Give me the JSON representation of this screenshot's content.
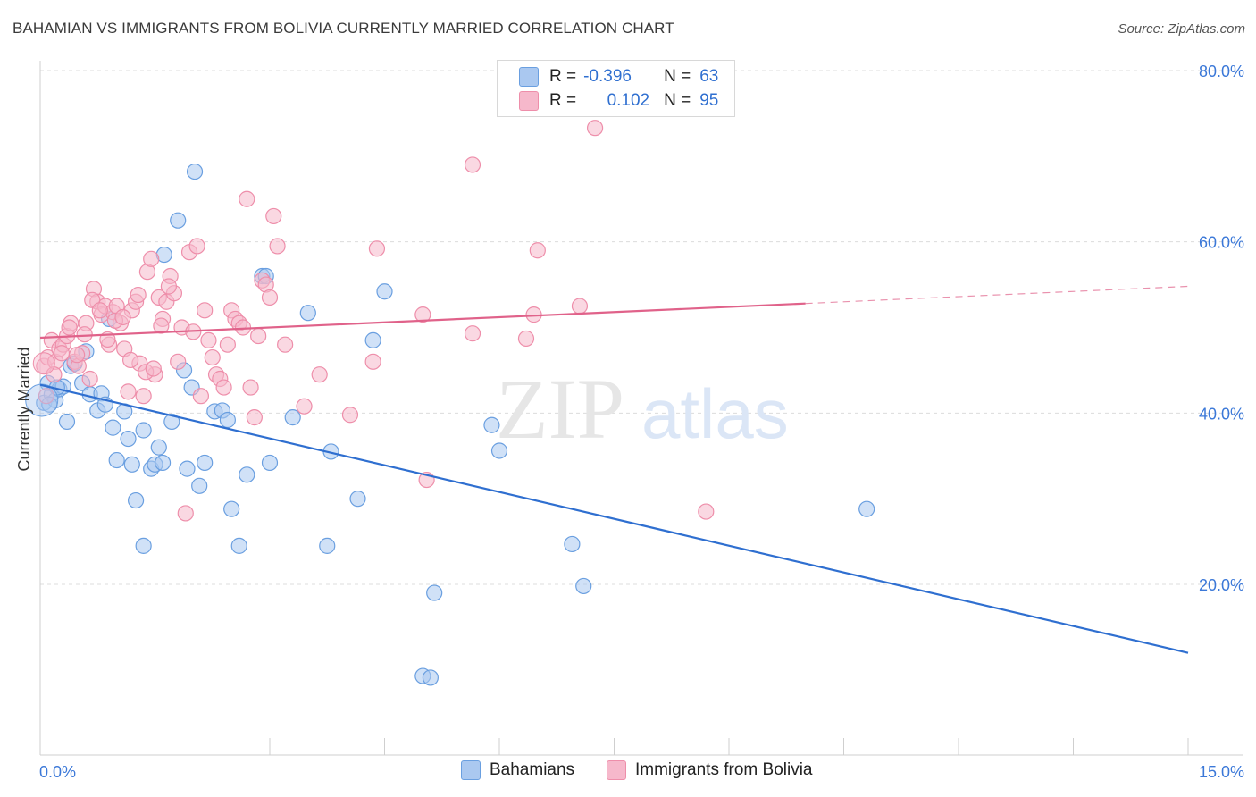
{
  "header": {
    "title": "BAHAMIAN VS IMMIGRANTS FROM BOLIVIA CURRENTLY MARRIED CORRELATION CHART",
    "source": "Source: ZipAtlas.com"
  },
  "watermark": {
    "zip": "ZIP",
    "atlas": "atlas"
  },
  "legend": {
    "rows": [
      {
        "r_label": "R =",
        "r_value": "-0.396",
        "n_label": "N =",
        "n_value": "63",
        "color": "#aac8f0"
      },
      {
        "r_label": "R =",
        "r_value": "0.102",
        "n_label": "N =",
        "n_value": "95",
        "color": "#f6b8cb"
      }
    ]
  },
  "chart_data": {
    "type": "scatter",
    "title": "BAHAMIAN VS IMMIGRANTS FROM BOLIVIA CURRENTLY MARRIED CORRELATION CHART",
    "xlabel": "",
    "ylabel": "Currently Married",
    "xlim": [
      0,
      15
    ],
    "ylim": [
      0,
      82
    ],
    "x_ticks": [
      {
        "value": 0,
        "label": "0.0%"
      },
      {
        "value": 15,
        "label": "15.0%"
      }
    ],
    "y_ticks": [
      {
        "value": 20,
        "label": "20.0%"
      },
      {
        "value": 40,
        "label": "40.0%"
      },
      {
        "value": 60,
        "label": "60.0%"
      },
      {
        "value": 80,
        "label": "80.0%"
      }
    ],
    "grid": true,
    "legend_position": "bottom",
    "series": [
      {
        "name": "Bahamians",
        "color": "#6a9fe0",
        "fill": "#aac8f0",
        "trend": {
          "x": [
            0.0,
            15.0
          ],
          "y": [
            43.3,
            12.0
          ],
          "dashed_from": null
        },
        "points": [
          [
            0.05,
            41.2
          ],
          [
            0.1,
            43.5
          ],
          [
            0.15,
            42.2
          ],
          [
            0.2,
            41.5
          ],
          [
            0.25,
            42.8
          ],
          [
            0.3,
            43.1
          ],
          [
            0.35,
            39.0
          ],
          [
            0.4,
            45.5
          ],
          [
            0.45,
            45.8
          ],
          [
            0.55,
            43.5
          ],
          [
            0.6,
            47.2
          ],
          [
            0.65,
            42.2
          ],
          [
            0.75,
            40.3
          ],
          [
            0.8,
            42.3
          ],
          [
            0.85,
            41.0
          ],
          [
            0.9,
            51.0
          ],
          [
            0.95,
            38.3
          ],
          [
            1.0,
            34.5
          ],
          [
            1.1,
            40.2
          ],
          [
            1.15,
            37.0
          ],
          [
            1.2,
            34.0
          ],
          [
            1.25,
            29.8
          ],
          [
            1.35,
            24.5
          ],
          [
            1.35,
            38.0
          ],
          [
            1.45,
            33.5
          ],
          [
            1.5,
            34.0
          ],
          [
            1.55,
            36.0
          ],
          [
            1.6,
            34.2
          ],
          [
            1.62,
            58.5
          ],
          [
            1.72,
            39.0
          ],
          [
            1.8,
            62.5
          ],
          [
            1.88,
            45.0
          ],
          [
            1.92,
            33.5
          ],
          [
            1.98,
            43.0
          ],
          [
            2.02,
            68.2
          ],
          [
            2.08,
            31.5
          ],
          [
            2.15,
            34.2
          ],
          [
            2.28,
            40.2
          ],
          [
            2.38,
            40.3
          ],
          [
            2.45,
            39.2
          ],
          [
            2.5,
            28.8
          ],
          [
            2.6,
            24.5
          ],
          [
            2.7,
            32.8
          ],
          [
            2.9,
            56.0
          ],
          [
            2.95,
            56.0
          ],
          [
            3.0,
            34.2
          ],
          [
            3.3,
            39.5
          ],
          [
            3.5,
            51.7
          ],
          [
            3.75,
            24.5
          ],
          [
            3.8,
            35.5
          ],
          [
            4.15,
            30.0
          ],
          [
            4.35,
            48.5
          ],
          [
            4.5,
            54.2
          ],
          [
            5.0,
            9.3
          ],
          [
            5.1,
            9.1
          ],
          [
            5.15,
            19.0
          ],
          [
            5.9,
            38.6
          ],
          [
            6.0,
            35.6
          ],
          [
            6.95,
            24.7
          ],
          [
            7.1,
            19.8
          ],
          [
            10.8,
            28.8
          ],
          [
            0.12,
            41.0
          ],
          [
            0.22,
            43.0
          ]
        ]
      },
      {
        "name": "Immigrants from Bolivia",
        "color": "#ee8eaa",
        "fill": "#f6b8cb",
        "trend": {
          "x": [
            0.0,
            15.0
          ],
          "y": [
            48.8,
            54.8
          ],
          "dashed_from": 10.0
        },
        "points": [
          [
            0.05,
            45.5
          ],
          [
            0.1,
            46.5
          ],
          [
            0.15,
            48.5
          ],
          [
            0.2,
            46.0
          ],
          [
            0.25,
            47.5
          ],
          [
            0.3,
            48.0
          ],
          [
            0.35,
            49.0
          ],
          [
            0.4,
            50.5
          ],
          [
            0.45,
            46.0
          ],
          [
            0.5,
            45.5
          ],
          [
            0.55,
            47.0
          ],
          [
            0.6,
            50.5
          ],
          [
            0.65,
            44.0
          ],
          [
            0.7,
            54.5
          ],
          [
            0.75,
            53.0
          ],
          [
            0.8,
            51.5
          ],
          [
            0.85,
            52.5
          ],
          [
            0.9,
            48.0
          ],
          [
            0.95,
            51.8
          ],
          [
            1.0,
            52.5
          ],
          [
            1.05,
            50.5
          ],
          [
            1.1,
            47.5
          ],
          [
            1.15,
            42.5
          ],
          [
            1.2,
            52.0
          ],
          [
            1.25,
            53.0
          ],
          [
            1.3,
            45.8
          ],
          [
            1.35,
            42.0
          ],
          [
            1.4,
            56.5
          ],
          [
            1.45,
            58.0
          ],
          [
            1.5,
            44.5
          ],
          [
            1.55,
            53.5
          ],
          [
            1.6,
            51.0
          ],
          [
            1.65,
            53.0
          ],
          [
            1.7,
            56.0
          ],
          [
            1.75,
            54.0
          ],
          [
            1.8,
            46.0
          ],
          [
            1.85,
            50.0
          ],
          [
            1.9,
            28.3
          ],
          [
            1.95,
            58.8
          ],
          [
            2.0,
            49.5
          ],
          [
            2.05,
            59.5
          ],
          [
            2.1,
            42.0
          ],
          [
            2.15,
            52.0
          ],
          [
            2.2,
            48.5
          ],
          [
            2.25,
            46.5
          ],
          [
            2.3,
            44.5
          ],
          [
            2.35,
            44.0
          ],
          [
            2.4,
            43.0
          ],
          [
            2.45,
            48.0
          ],
          [
            2.5,
            52.0
          ],
          [
            2.55,
            51.0
          ],
          [
            2.6,
            50.5
          ],
          [
            2.65,
            50.0
          ],
          [
            2.7,
            65.0
          ],
          [
            2.75,
            43.0
          ],
          [
            2.8,
            39.5
          ],
          [
            2.85,
            49.0
          ],
          [
            2.9,
            55.5
          ],
          [
            2.95,
            55.0
          ],
          [
            3.0,
            53.5
          ],
          [
            3.05,
            63.0
          ],
          [
            3.1,
            59.5
          ],
          [
            3.2,
            48.0
          ],
          [
            3.45,
            40.8
          ],
          [
            3.65,
            44.5
          ],
          [
            4.05,
            39.8
          ],
          [
            4.35,
            46.0
          ],
          [
            4.4,
            59.2
          ],
          [
            5.0,
            51.5
          ],
          [
            5.05,
            32.2
          ],
          [
            5.65,
            49.3
          ],
          [
            5.65,
            69.0
          ],
          [
            6.35,
            48.7
          ],
          [
            6.45,
            51.5
          ],
          [
            6.5,
            59.0
          ],
          [
            7.05,
            52.5
          ],
          [
            7.25,
            73.3
          ],
          [
            8.7,
            28.5
          ],
          [
            0.08,
            42.0
          ],
          [
            0.18,
            44.5
          ],
          [
            0.28,
            47.0
          ],
          [
            0.38,
            50.0
          ],
          [
            0.48,
            46.8
          ],
          [
            0.58,
            49.2
          ],
          [
            0.68,
            53.2
          ],
          [
            0.78,
            52.0
          ],
          [
            0.88,
            48.6
          ],
          [
            0.98,
            50.8
          ],
          [
            1.08,
            51.2
          ],
          [
            1.18,
            46.2
          ],
          [
            1.28,
            53.8
          ],
          [
            1.38,
            44.8
          ],
          [
            1.48,
            45.2
          ],
          [
            1.58,
            50.2
          ],
          [
            1.68,
            54.8
          ]
        ]
      }
    ]
  }
}
